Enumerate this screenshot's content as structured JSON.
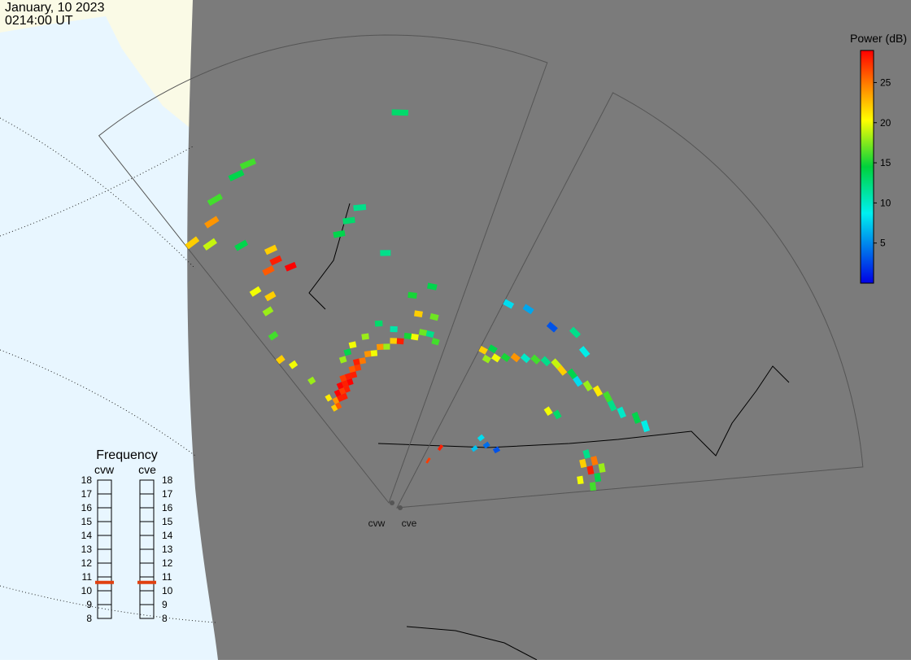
{
  "header": {
    "date": "January, 10 2023",
    "time": "0214:00 UT"
  },
  "colorbar": {
    "title": "Power (dB)",
    "lim": [
      0,
      29
    ],
    "ticks": [
      5,
      10,
      15,
      20,
      25
    ]
  },
  "frequency": {
    "title": "Frequency",
    "lim": [
      8,
      18
    ],
    "ticks": [
      8,
      9,
      10,
      11,
      12,
      13,
      14,
      15,
      16,
      17,
      18
    ],
    "radars": [
      {
        "name": "cvw",
        "value": 10.6
      },
      {
        "name": "cve",
        "value": 10.6
      }
    ]
  },
  "radars": [
    {
      "name": "cvw",
      "cells": [
        [
          5,
          15,
          28
        ],
        [
          5,
          16,
          29
        ],
        [
          6,
          15,
          28
        ],
        [
          6,
          16,
          27
        ],
        [
          6,
          17,
          29
        ],
        [
          7,
          16,
          28
        ],
        [
          7,
          17,
          28
        ],
        [
          7,
          18,
          27
        ],
        [
          8,
          17,
          29
        ],
        [
          8,
          18,
          28
        ],
        [
          9,
          18,
          28
        ],
        [
          9,
          19,
          26
        ],
        [
          10,
          19,
          27
        ],
        [
          10,
          20,
          28
        ],
        [
          4,
          14,
          26
        ],
        [
          4,
          15,
          24
        ],
        [
          3,
          16,
          21
        ],
        [
          3,
          14,
          22
        ],
        [
          11,
          20,
          25
        ],
        [
          12,
          21,
          24
        ],
        [
          13,
          21,
          20
        ],
        [
          14,
          22,
          24
        ],
        [
          15,
          22,
          18
        ],
        [
          16,
          23,
          22
        ],
        [
          17,
          23,
          28
        ],
        [
          18,
          24,
          15
        ],
        [
          19,
          24,
          20
        ],
        [
          20,
          25,
          17
        ],
        [
          21,
          25,
          12
        ],
        [
          22,
          24,
          16
        ],
        [
          8,
          21,
          18
        ],
        [
          9,
          22,
          14
        ],
        [
          10,
          23,
          20
        ],
        [
          12,
          24,
          18
        ],
        [
          14,
          26,
          13
        ],
        [
          16,
          25,
          11
        ],
        [
          2,
          20,
          18
        ],
        [
          1,
          24,
          20
        ],
        [
          0,
          26,
          22
        ],
        [
          1,
          30,
          16
        ],
        [
          2,
          34,
          18
        ],
        [
          3,
          36,
          22
        ],
        [
          2,
          38,
          20
        ],
        [
          4,
          40,
          26
        ],
        [
          5,
          41,
          28
        ],
        [
          6,
          39,
          29
        ],
        [
          5,
          43,
          22
        ],
        [
          3,
          46,
          14
        ],
        [
          1,
          49,
          19
        ],
        [
          0,
          51,
          22
        ],
        [
          2,
          52,
          24
        ],
        [
          3,
          55,
          16
        ],
        [
          5,
          57,
          14
        ],
        [
          6,
          58,
          16
        ],
        [
          12,
          44,
          13
        ],
        [
          13,
          46,
          12
        ],
        [
          11,
          42,
          14
        ],
        [
          16,
          62,
          13
        ],
        [
          15,
          38,
          12
        ],
        [
          18,
          31,
          15
        ],
        [
          20,
          33,
          14
        ],
        [
          21,
          28,
          17
        ],
        [
          19,
          28,
          22
        ]
      ]
    },
    {
      "name": "cve",
      "cells": [
        [
          0,
          26,
          22
        ],
        [
          1,
          25,
          18
        ],
        [
          1,
          27,
          14
        ],
        [
          2,
          26,
          20
        ],
        [
          3,
          27,
          15
        ],
        [
          4,
          28,
          24
        ],
        [
          5,
          29,
          10
        ],
        [
          6,
          30,
          16
        ],
        [
          7,
          31,
          12
        ],
        [
          8,
          32,
          19
        ],
        [
          9,
          32,
          22
        ],
        [
          10,
          33,
          14
        ],
        [
          11,
          33,
          8
        ],
        [
          12,
          34,
          18
        ],
        [
          13,
          35,
          21
        ],
        [
          14,
          36,
          16
        ],
        [
          15,
          36,
          12
        ],
        [
          16,
          37,
          10
        ],
        [
          17,
          39,
          14
        ],
        [
          18,
          40,
          9
        ],
        [
          0,
          35,
          8
        ],
        [
          2,
          36,
          6
        ],
        [
          5,
          36,
          3
        ],
        [
          7,
          38,
          12
        ],
        [
          9,
          37,
          9
        ],
        [
          12,
          26,
          20
        ],
        [
          13,
          27,
          13
        ],
        [
          20,
          28,
          22
        ],
        [
          20,
          30,
          25
        ],
        [
          21,
          29,
          28
        ],
        [
          21,
          31,
          18
        ],
        [
          22,
          30,
          14
        ],
        [
          19,
          29,
          12
        ],
        [
          22,
          27,
          20
        ],
        [
          23,
          29,
          16
        ],
        [
          10,
          12,
          7
        ],
        [
          11,
          14,
          4
        ],
        [
          9,
          14,
          8
        ],
        [
          13,
          15,
          3
        ],
        [
          3,
          8,
          28
        ],
        [
          2,
          5,
          27
        ]
      ]
    }
  ]
}
